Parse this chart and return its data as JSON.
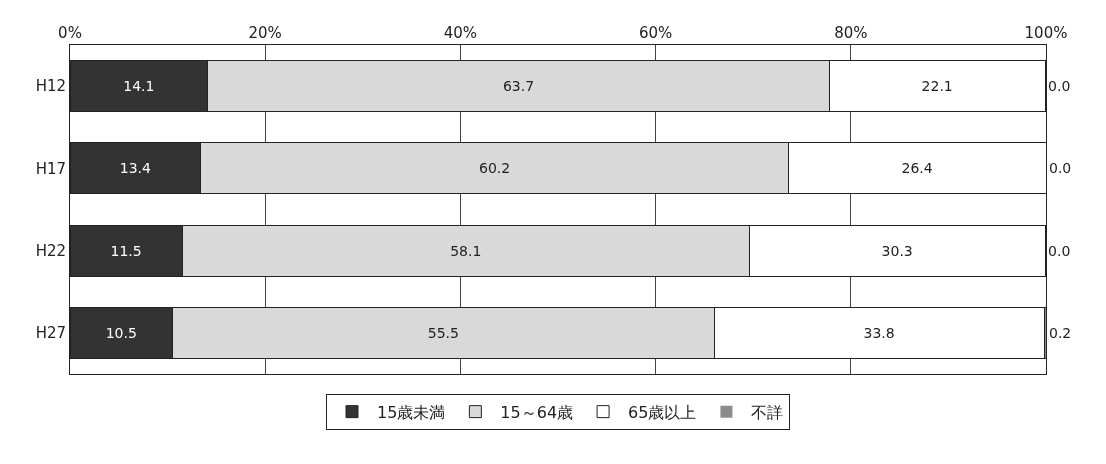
{
  "chart_data": {
    "type": "bar",
    "orientation": "horizontal",
    "stacked": true,
    "categories": [
      "H12",
      "H17",
      "H22",
      "H27"
    ],
    "series": [
      {
        "name": "15歳未満",
        "color": "#333333",
        "values": [
          14.1,
          13.4,
          11.5,
          10.5
        ],
        "value_labels": [
          "14.1",
          "13.4",
          "11.5",
          "10.5"
        ]
      },
      {
        "name": "15～64歳",
        "color": "#d9d9d9",
        "values": [
          63.7,
          60.2,
          58.1,
          55.5
        ],
        "value_labels": [
          "63.7",
          "60.2",
          "58.1",
          "55.5"
        ]
      },
      {
        "name": "65歳以上",
        "color": "#ffffff",
        "values": [
          22.1,
          26.4,
          30.3,
          33.8
        ],
        "value_labels": [
          "22.1",
          "26.4",
          "30.3",
          "33.8"
        ]
      },
      {
        "name": "不詳",
        "color": "#8c8c8c",
        "values": [
          0.0,
          0.0,
          0.0,
          0.2
        ],
        "value_labels": [
          "0.0",
          "0.0",
          "0.0",
          "0.2"
        ]
      }
    ],
    "xlim": [
      0,
      100
    ],
    "xticks": [
      {
        "value": 0,
        "label": "0%"
      },
      {
        "value": 20,
        "label": "20%"
      },
      {
        "value": 40,
        "label": "40%"
      },
      {
        "value": 60,
        "label": "60%"
      },
      {
        "value": 80,
        "label": "80%"
      },
      {
        "value": 100,
        "label": "100%"
      }
    ],
    "grid": "x",
    "legend": "bottom"
  }
}
